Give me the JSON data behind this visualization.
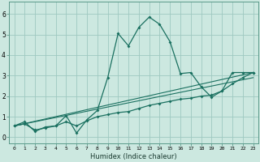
{
  "title": "",
  "xlabel": "Humidex (Indice chaleur)",
  "bg_color": "#cce8e0",
  "line_color": "#1a7060",
  "grid_color": "#9ec8c0",
  "xlim": [
    -0.5,
    23.5
  ],
  "ylim": [
    -0.3,
    6.6
  ],
  "xticks": [
    0,
    1,
    2,
    3,
    4,
    5,
    6,
    7,
    8,
    9,
    10,
    11,
    12,
    13,
    14,
    15,
    16,
    17,
    18,
    19,
    20,
    21,
    22,
    23
  ],
  "yticks": [
    0,
    1,
    2,
    3,
    4,
    5,
    6
  ],
  "series1_x": [
    0,
    1,
    2,
    3,
    4,
    5,
    6,
    7,
    8,
    9,
    10,
    11,
    12,
    13,
    14,
    15,
    16,
    17,
    18,
    19,
    20,
    21,
    22,
    23
  ],
  "series1_y": [
    0.55,
    0.75,
    0.28,
    0.5,
    0.55,
    1.05,
    0.2,
    0.85,
    1.3,
    2.9,
    5.05,
    4.45,
    5.35,
    5.85,
    5.5,
    4.65,
    3.1,
    3.15,
    2.45,
    1.95,
    2.25,
    3.15,
    3.15,
    3.15
  ],
  "series2_x": [
    0,
    1,
    2,
    3,
    4,
    5,
    6,
    7,
    8,
    9,
    10,
    11,
    12,
    13,
    14,
    15,
    16,
    17,
    18,
    19,
    20,
    21,
    22,
    23
  ],
  "series2_y": [
    0.55,
    0.65,
    0.35,
    0.45,
    0.55,
    0.75,
    0.55,
    0.8,
    1.0,
    1.1,
    1.2,
    1.25,
    1.4,
    1.55,
    1.65,
    1.75,
    1.85,
    1.9,
    2.0,
    2.05,
    2.25,
    2.6,
    2.9,
    3.15
  ],
  "line3_x": [
    0,
    23
  ],
  "line3_y": [
    0.55,
    3.15
  ],
  "line4_x": [
    0,
    23
  ],
  "line4_y": [
    0.55,
    2.9
  ]
}
